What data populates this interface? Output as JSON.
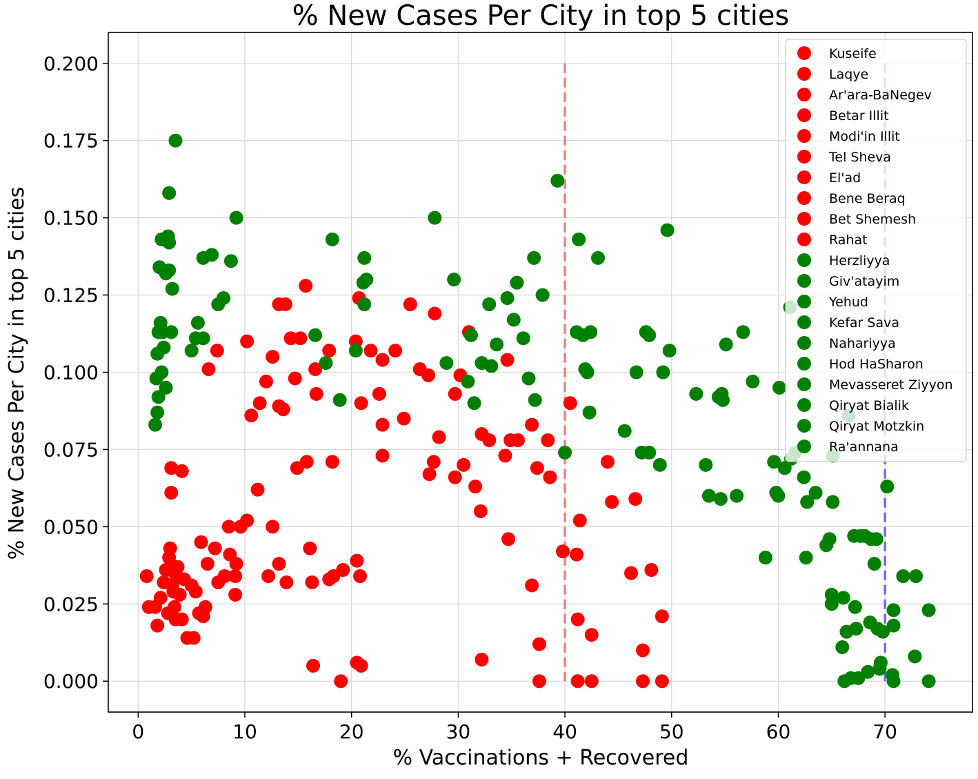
{
  "chart_data": {
    "type": "scatter",
    "title": "% New Cases Per City in top 5 cities",
    "xlabel": "% Vaccinations + Recovered",
    "ylabel": "% New Cases Per City in top 5 cities",
    "xlim": [
      -2.8,
      78.2
    ],
    "ylim": [
      -0.01,
      0.21
    ],
    "xticks": [
      0,
      10,
      20,
      30,
      40,
      50,
      60,
      70
    ],
    "xtick_labels": [
      "0",
      "10",
      "20",
      "30",
      "40",
      "50",
      "60",
      "70"
    ],
    "yticks": [
      0.0,
      0.025,
      0.05,
      0.075,
      0.1,
      0.125,
      0.15,
      0.175,
      0.2
    ],
    "ytick_labels": [
      "0.000",
      "0.025",
      "0.050",
      "0.075",
      "0.100",
      "0.125",
      "0.150",
      "0.175",
      "0.200"
    ],
    "grid": true,
    "legend_position": "top-right",
    "colors": {
      "low": "#ff0000",
      "high": "#008000",
      "red_line": "#f08080",
      "blue_line": "#6b6bff"
    },
    "reference_lines": [
      {
        "x": 40,
        "y_from": 0.0,
        "y_to": 0.2,
        "color": "#f08080",
        "style": "dashed"
      },
      {
        "x": 70,
        "y_from": 0.0,
        "y_to": 0.2,
        "color": "#6b6bff",
        "style": "dashed"
      }
    ],
    "legend": [
      {
        "label": "Kuseife",
        "color": "#ff0000"
      },
      {
        "label": "Laqye",
        "color": "#ff0000"
      },
      {
        "label": "Ar'ara-BaNegev",
        "color": "#ff0000"
      },
      {
        "label": "Betar Illit",
        "color": "#ff0000"
      },
      {
        "label": "Modi'in Illit",
        "color": "#ff0000"
      },
      {
        "label": "Tel Sheva",
        "color": "#ff0000"
      },
      {
        "label": "El'ad",
        "color": "#ff0000"
      },
      {
        "label": "Bene Beraq",
        "color": "#ff0000"
      },
      {
        "label": "Bet Shemesh",
        "color": "#ff0000"
      },
      {
        "label": "Rahat",
        "color": "#ff0000"
      },
      {
        "label": "Herzliyya",
        "color": "#008000"
      },
      {
        "label": "Giv'atayim",
        "color": "#008000"
      },
      {
        "label": "Yehud",
        "color": "#008000"
      },
      {
        "label": "Kefar Sava",
        "color": "#008000"
      },
      {
        "label": "Nahariyya",
        "color": "#008000"
      },
      {
        "label": "Hod HaSharon",
        "color": "#008000"
      },
      {
        "label": "Mevasseret Ziyyon",
        "color": "#008000"
      },
      {
        "label": "Qiryat Bialik",
        "color": "#008000"
      },
      {
        "label": "Qiryat Motzkin",
        "color": "#008000"
      },
      {
        "label": "Ra'annana",
        "color": "#008000"
      }
    ],
    "series": [
      {
        "color": "#ff0000",
        "points": [
          [
            0.8,
            0.034
          ],
          [
            1.0,
            0.024
          ],
          [
            1.6,
            0.024
          ],
          [
            1.8,
            0.018
          ],
          [
            2.1,
            0.027
          ],
          [
            2.4,
            0.032
          ],
          [
            2.6,
            0.036
          ],
          [
            2.8,
            0.022
          ],
          [
            2.9,
            0.04
          ],
          [
            3.0,
            0.043
          ],
          [
            3.1,
            0.036
          ],
          [
            3.2,
            0.031
          ],
          [
            3.3,
            0.029
          ],
          [
            3.4,
            0.024
          ],
          [
            3.5,
            0.02
          ],
          [
            3.6,
            0.034
          ],
          [
            3.7,
            0.037
          ],
          [
            3.9,
            0.028
          ],
          [
            4.1,
            0.02
          ],
          [
            4.3,
            0.033
          ],
          [
            4.6,
            0.014
          ],
          [
            5.2,
            0.014
          ],
          [
            5.0,
            0.031
          ],
          [
            5.4,
            0.029
          ],
          [
            5.7,
            0.022
          ],
          [
            6.1,
            0.021
          ],
          [
            6.3,
            0.024
          ],
          [
            6.5,
            0.038
          ],
          [
            5.9,
            0.045
          ],
          [
            7.2,
            0.043
          ],
          [
            7.5,
            0.032
          ],
          [
            8.1,
            0.034
          ],
          [
            8.6,
            0.041
          ],
          [
            9.2,
            0.038
          ],
          [
            9.1,
            0.034
          ],
          [
            9.1,
            0.028
          ],
          [
            8.5,
            0.05
          ],
          [
            9.6,
            0.05
          ],
          [
            10.2,
            0.052
          ],
          [
            11.2,
            0.062
          ],
          [
            12.6,
            0.05
          ],
          [
            12.2,
            0.034
          ],
          [
            13.2,
            0.038
          ],
          [
            13.9,
            0.032
          ],
          [
            3.1,
            0.061
          ],
          [
            3.1,
            0.069
          ],
          [
            4.1,
            0.068
          ],
          [
            6.6,
            0.101
          ],
          [
            7.4,
            0.107
          ],
          [
            10.2,
            0.11
          ],
          [
            10.6,
            0.086
          ],
          [
            11.4,
            0.09
          ],
          [
            12.0,
            0.097
          ],
          [
            12.6,
            0.105
          ],
          [
            13.2,
            0.089
          ],
          [
            13.6,
            0.088
          ],
          [
            13.2,
            0.122
          ],
          [
            13.8,
            0.122
          ],
          [
            14.3,
            0.111
          ],
          [
            15.2,
            0.111
          ],
          [
            14.7,
            0.098
          ],
          [
            15.7,
            0.128
          ],
          [
            14.9,
            0.069
          ],
          [
            15.8,
            0.071
          ],
          [
            16.6,
            0.101
          ],
          [
            16.7,
            0.093
          ],
          [
            16.1,
            0.043
          ],
          [
            16.3,
            0.032
          ],
          [
            17.9,
            0.033
          ],
          [
            18.3,
            0.034
          ],
          [
            18.2,
            0.071
          ],
          [
            17.9,
            0.107
          ],
          [
            19.2,
            0.036
          ],
          [
            20.5,
            0.039
          ],
          [
            20.8,
            0.034
          ],
          [
            20.4,
            0.11
          ],
          [
            20.7,
            0.124
          ],
          [
            20.9,
            0.09
          ],
          [
            21.8,
            0.107
          ],
          [
            22.6,
            0.093
          ],
          [
            22.9,
            0.104
          ],
          [
            22.9,
            0.083
          ],
          [
            22.9,
            0.073
          ],
          [
            24.1,
            0.107
          ],
          [
            24.9,
            0.085
          ],
          [
            25.5,
            0.122
          ],
          [
            26.4,
            0.101
          ],
          [
            27.2,
            0.099
          ],
          [
            27.8,
            0.119
          ],
          [
            28.2,
            0.079
          ],
          [
            27.3,
            0.067
          ],
          [
            27.7,
            0.071
          ],
          [
            29.7,
            0.093
          ],
          [
            30.2,
            0.099
          ],
          [
            30.5,
            0.07
          ],
          [
            29.7,
            0.066
          ],
          [
            31.0,
            0.113
          ],
          [
            31.6,
            0.063
          ],
          [
            32.2,
            0.08
          ],
          [
            32.9,
            0.078
          ],
          [
            32.1,
            0.055
          ],
          [
            34.6,
            0.104
          ],
          [
            34.4,
            0.073
          ],
          [
            34.9,
            0.078
          ],
          [
            35.6,
            0.078
          ],
          [
            34.7,
            0.046
          ],
          [
            36.9,
            0.083
          ],
          [
            37.4,
            0.069
          ],
          [
            38.4,
            0.078
          ],
          [
            38.6,
            0.066
          ],
          [
            40.5,
            0.09
          ],
          [
            41.4,
            0.052
          ],
          [
            44.0,
            0.071
          ],
          [
            44.4,
            0.058
          ],
          [
            46.6,
            0.059
          ],
          [
            36.9,
            0.031
          ],
          [
            39.8,
            0.042
          ],
          [
            41.1,
            0.041
          ],
          [
            46.2,
            0.035
          ],
          [
            48.1,
            0.036
          ],
          [
            41.2,
            0.02
          ],
          [
            42.5,
            0.015
          ],
          [
            47.3,
            0.01
          ],
          [
            49.1,
            0.021
          ],
          [
            37.6,
            0.012
          ],
          [
            32.2,
            0.007
          ],
          [
            16.4,
            0.005
          ],
          [
            20.5,
            0.006
          ],
          [
            20.9,
            0.005
          ],
          [
            19.0,
            0.0
          ],
          [
            37.6,
            0.0
          ],
          [
            41.2,
            0.0
          ],
          [
            42.5,
            0.0
          ],
          [
            47.3,
            0.0
          ],
          [
            49.1,
            0.0
          ]
        ]
      },
      {
        "color": "#008000",
        "points": [
          [
            3.5,
            0.175
          ],
          [
            2.9,
            0.158
          ],
          [
            2.2,
            0.143
          ],
          [
            2.8,
            0.144
          ],
          [
            2.9,
            0.142
          ],
          [
            2.0,
            0.134
          ],
          [
            2.6,
            0.132
          ],
          [
            2.9,
            0.133
          ],
          [
            3.2,
            0.127
          ],
          [
            2.1,
            0.116
          ],
          [
            2.3,
            0.113
          ],
          [
            1.9,
            0.113
          ],
          [
            3.1,
            0.113
          ],
          [
            2.4,
            0.108
          ],
          [
            1.8,
            0.106
          ],
          [
            2.2,
            0.1
          ],
          [
            1.7,
            0.098
          ],
          [
            2.6,
            0.095
          ],
          [
            1.9,
            0.092
          ],
          [
            1.8,
            0.087
          ],
          [
            1.6,
            0.083
          ],
          [
            5.6,
            0.116
          ],
          [
            5.0,
            0.107
          ],
          [
            5.4,
            0.111
          ],
          [
            6.1,
            0.111
          ],
          [
            6.1,
            0.137
          ],
          [
            6.9,
            0.138
          ],
          [
            7.5,
            0.122
          ],
          [
            8.0,
            0.124
          ],
          [
            8.7,
            0.136
          ],
          [
            9.2,
            0.15
          ],
          [
            16.6,
            0.112
          ],
          [
            17.6,
            0.103
          ],
          [
            18.2,
            0.143
          ],
          [
            18.9,
            0.091
          ],
          [
            20.4,
            0.107
          ],
          [
            21.1,
            0.129
          ],
          [
            21.2,
            0.137
          ],
          [
            21.4,
            0.13
          ],
          [
            21.2,
            0.122
          ],
          [
            27.8,
            0.15
          ],
          [
            28.9,
            0.103
          ],
          [
            29.6,
            0.13
          ],
          [
            30.9,
            0.097
          ],
          [
            31.2,
            0.112
          ],
          [
            31.5,
            0.09
          ],
          [
            32.2,
            0.103
          ],
          [
            32.9,
            0.122
          ],
          [
            33.1,
            0.102
          ],
          [
            33.6,
            0.109
          ],
          [
            34.6,
            0.124
          ],
          [
            35.2,
            0.117
          ],
          [
            35.5,
            0.129
          ],
          [
            36.1,
            0.111
          ],
          [
            36.6,
            0.098
          ],
          [
            37.1,
            0.137
          ],
          [
            37.2,
            0.091
          ],
          [
            37.9,
            0.125
          ],
          [
            39.3,
            0.162
          ],
          [
            40.0,
            0.074
          ],
          [
            41.1,
            0.113
          ],
          [
            41.3,
            0.143
          ],
          [
            41.7,
            0.112
          ],
          [
            41.9,
            0.101
          ],
          [
            42.1,
            0.1
          ],
          [
            42.4,
            0.113
          ],
          [
            42.3,
            0.087
          ],
          [
            43.1,
            0.137
          ],
          [
            45.6,
            0.081
          ],
          [
            46.7,
            0.1
          ],
          [
            47.2,
            0.074
          ],
          [
            47.6,
            0.113
          ],
          [
            47.9,
            0.112
          ],
          [
            47.9,
            0.074
          ],
          [
            48.9,
            0.07
          ],
          [
            49.2,
            0.1
          ],
          [
            49.6,
            0.146
          ],
          [
            49.8,
            0.107
          ],
          [
            52.3,
            0.093
          ],
          [
            53.2,
            0.07
          ],
          [
            53.5,
            0.06
          ],
          [
            54.4,
            0.092
          ],
          [
            54.8,
            0.091
          ],
          [
            54.7,
            0.093
          ],
          [
            54.6,
            0.059
          ],
          [
            55.1,
            0.109
          ],
          [
            56.1,
            0.06
          ],
          [
            56.7,
            0.113
          ],
          [
            57.6,
            0.097
          ],
          [
            58.8,
            0.04
          ],
          [
            59.6,
            0.071
          ],
          [
            59.8,
            0.061
          ],
          [
            60.0,
            0.06
          ],
          [
            60.1,
            0.095
          ],
          [
            60.6,
            0.069
          ],
          [
            61.1,
            0.121
          ],
          [
            61.2,
            0.072
          ],
          [
            61.6,
            0.074
          ],
          [
            62.4,
            0.066
          ],
          [
            62.7,
            0.058
          ],
          [
            62.6,
            0.04
          ],
          [
            63.5,
            0.061
          ],
          [
            64.5,
            0.044
          ],
          [
            64.8,
            0.046
          ],
          [
            65.1,
            0.058
          ],
          [
            65.1,
            0.073
          ],
          [
            65.0,
            0.028
          ],
          [
            65.0,
            0.025
          ],
          [
            66.1,
            0.027
          ],
          [
            66.0,
            0.011
          ],
          [
            66.2,
            0.0
          ],
          [
            66.4,
            0.016
          ],
          [
            66.6,
            0.086
          ],
          [
            66.8,
            0.001
          ],
          [
            67.1,
            0.047
          ],
          [
            67.2,
            0.024
          ],
          [
            67.3,
            0.017
          ],
          [
            67.5,
            0.001
          ],
          [
            67.7,
            0.047
          ],
          [
            68.1,
            0.047
          ],
          [
            68.4,
            0.003
          ],
          [
            68.6,
            0.019
          ],
          [
            68.7,
            0.046
          ],
          [
            69.0,
            0.038
          ],
          [
            69.2,
            0.046
          ],
          [
            69.3,
            0.017
          ],
          [
            69.5,
            0.004
          ],
          [
            69.6,
            0.006
          ],
          [
            69.8,
            0.016
          ],
          [
            70.2,
            0.063
          ],
          [
            70.7,
            0.002
          ],
          [
            70.8,
            0.018
          ],
          [
            70.8,
            0.023
          ],
          [
            70.8,
            0.0
          ],
          [
            71.7,
            0.034
          ],
          [
            72.8,
            0.008
          ],
          [
            72.9,
            0.034
          ],
          [
            74.1,
            0.023
          ],
          [
            74.1,
            0.0
          ]
        ]
      }
    ]
  }
}
